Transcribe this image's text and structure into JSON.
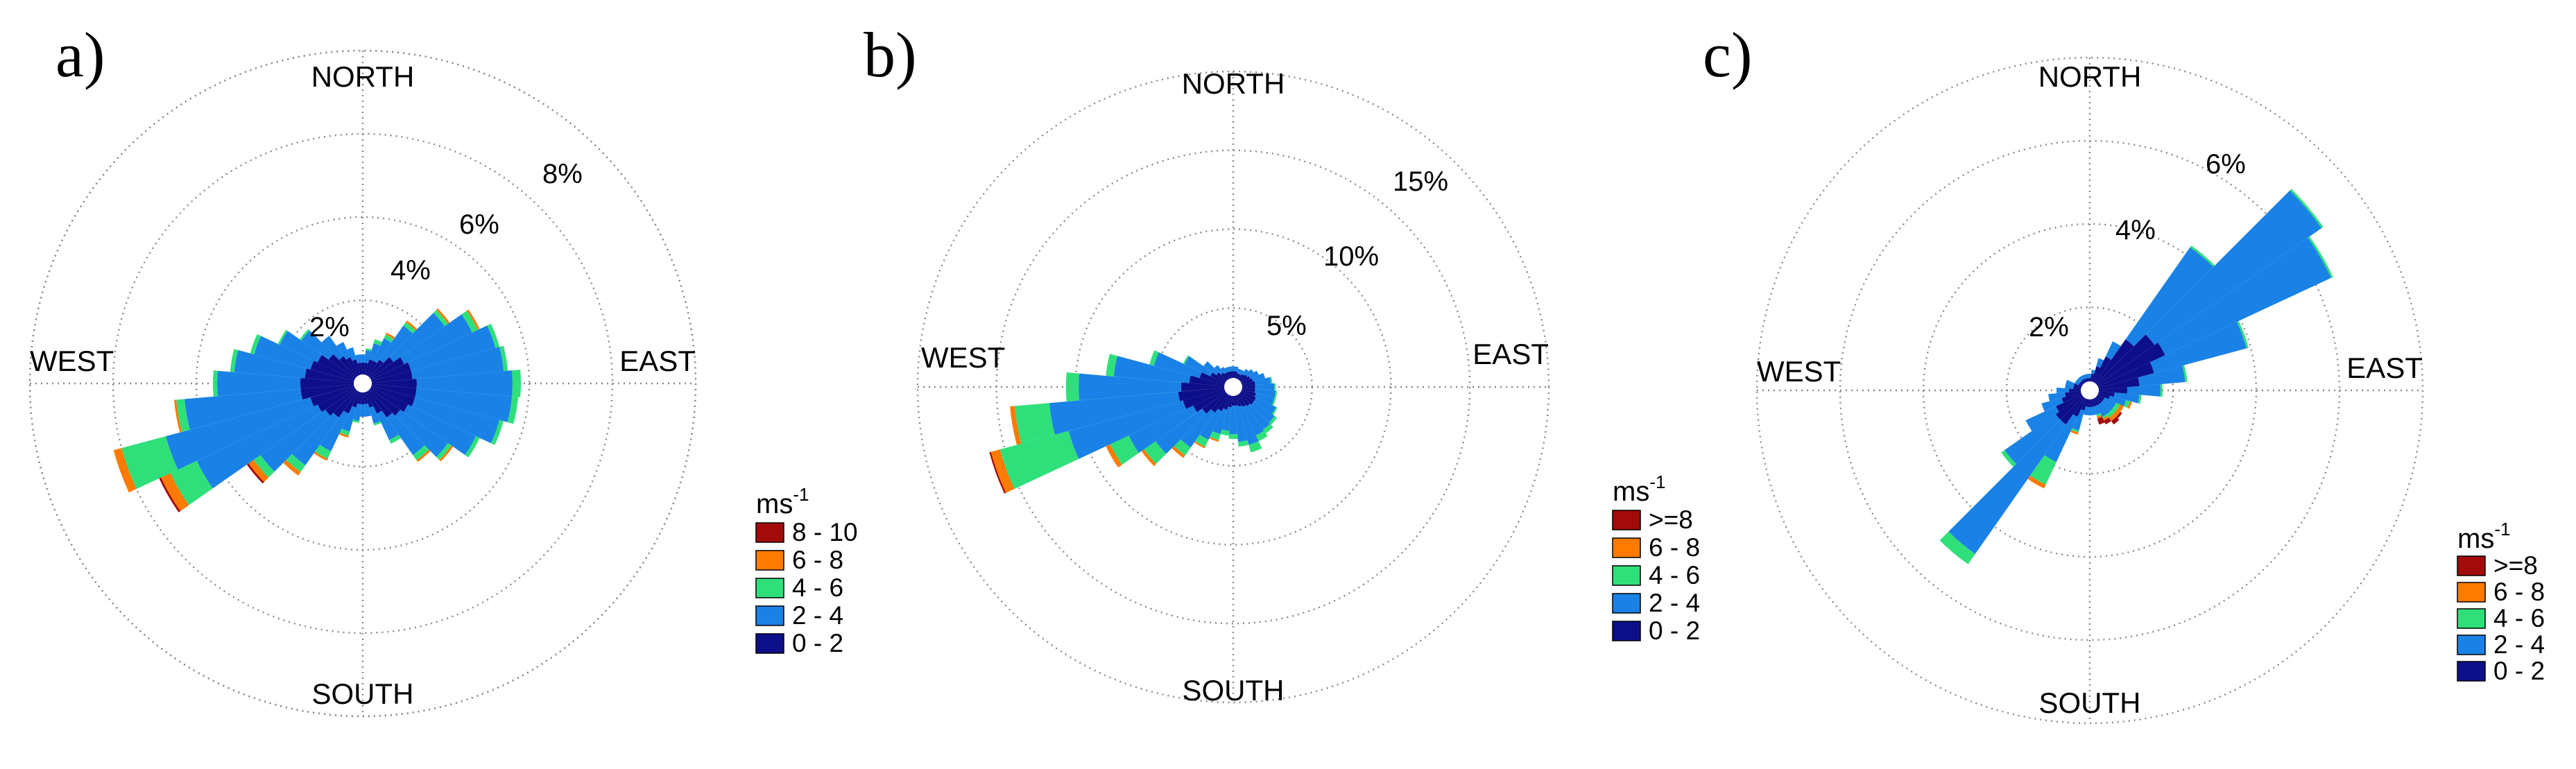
{
  "colors": {
    "bin_0_2": "#0d0f8a",
    "bin_2_4": "#1a82e6",
    "bin_4_6": "#2fe07a",
    "bin_6_8": "#ff7a00",
    "bin_8_plus": "#a30a0a"
  },
  "chart_data": [
    {
      "type": "windrose",
      "panel_label": "a)",
      "directions": {
        "north": "NORTH",
        "east": "EAST",
        "south": "SOUTH",
        "west": "WEST"
      },
      "rings": [
        2,
        4,
        6,
        8
      ],
      "ring_labels": [
        "2%",
        "4%",
        "6%",
        "8%"
      ],
      "rmax": 8,
      "legend_title": "ms",
      "legend_title_sup": "-1",
      "legend_labels": [
        "8 - 10",
        "6 - 8",
        "4 - 6",
        "2 - 4",
        "0 - 2"
      ],
      "bins": [
        "0 - 2",
        "2 - 4",
        "4 - 6",
        "6 - 8",
        "8 - 10"
      ],
      "directions_deg": [
        0,
        10,
        20,
        30,
        40,
        50,
        60,
        70,
        80,
        90,
        100,
        110,
        120,
        130,
        140,
        150,
        160,
        170,
        180,
        190,
        200,
        210,
        220,
        230,
        240,
        250,
        260,
        270,
        280,
        290,
        300,
        310,
        320,
        330,
        340,
        350
      ],
      "values": [
        [
          0.5,
          0.2,
          0,
          0,
          0
        ],
        [
          0.5,
          0.3,
          0.05,
          0,
          0
        ],
        [
          0.6,
          0.4,
          0.1,
          0,
          0
        ],
        [
          0.6,
          0.6,
          0.1,
          0.05,
          0
        ],
        [
          0.7,
          1.0,
          0.1,
          0.05,
          0
        ],
        [
          0.9,
          1.5,
          0.1,
          0.05,
          0
        ],
        [
          1.1,
          1.8,
          0.15,
          0.05,
          0
        ],
        [
          1.2,
          2.1,
          0.1,
          0,
          0
        ],
        [
          1.2,
          2.2,
          0.1,
          0,
          0
        ],
        [
          1.3,
          2.3,
          0.2,
          0,
          0
        ],
        [
          1.3,
          2.3,
          0.15,
          0,
          0
        ],
        [
          1.3,
          2.1,
          0.1,
          0,
          0
        ],
        [
          1.2,
          1.8,
          0.1,
          0,
          0
        ],
        [
          1.1,
          1.4,
          0.1,
          0.05,
          0
        ],
        [
          1.0,
          1.1,
          0.15,
          0.05,
          0
        ],
        [
          0.8,
          0.7,
          0.1,
          0,
          0
        ],
        [
          0.6,
          0.4,
          0.05,
          0,
          0
        ],
        [
          0.5,
          0.3,
          0,
          0,
          0
        ],
        [
          0.5,
          0.3,
          0,
          0,
          0
        ],
        [
          0.5,
          0.4,
          0.05,
          0,
          0
        ],
        [
          0.6,
          0.6,
          0.1,
          0.05,
          0
        ],
        [
          0.8,
          1.0,
          0.2,
          0.05,
          0
        ],
        [
          1.0,
          1.4,
          0.2,
          0.1,
          0
        ],
        [
          1.1,
          1.9,
          0.2,
          0.15,
          0.05
        ],
        [
          1.2,
          3.2,
          0.7,
          0.25,
          0.05
        ],
        [
          1.3,
          3.6,
          1.1,
          0.2,
          0
        ],
        [
          1.5,
          2.8,
          0.2,
          0.05,
          0
        ],
        [
          1.5,
          2.0,
          0.1,
          0,
          0
        ],
        [
          1.4,
          1.7,
          0.1,
          0,
          0
        ],
        [
          1.3,
          1.4,
          0.1,
          0,
          0
        ],
        [
          1.2,
          1.0,
          0.05,
          0,
          0
        ],
        [
          1.0,
          0.8,
          0.05,
          0,
          0
        ],
        [
          0.8,
          0.6,
          0,
          0,
          0
        ],
        [
          0.7,
          0.4,
          0,
          0,
          0
        ],
        [
          0.6,
          0.3,
          0,
          0,
          0
        ],
        [
          0.5,
          0.2,
          0,
          0,
          0
        ]
      ]
    },
    {
      "type": "windrose",
      "panel_label": "b)",
      "directions": {
        "north": "NORTH",
        "east": "EAST",
        "south": "SOUTH",
        "west": "WEST"
      },
      "rings": [
        5,
        10,
        15
      ],
      "ring_labels": [
        "5%",
        "10%",
        "15%"
      ],
      "rmax": 20,
      "legend_title": "ms",
      "legend_title_sup": "-1",
      "legend_labels": [
        ">=8",
        "6 - 8",
        "4 - 6",
        "2 - 4",
        "0 - 2"
      ],
      "bins": [
        "0 - 2",
        "2 - 4",
        "4 - 6",
        "6 - 8",
        ">=8"
      ],
      "directions_deg": [
        0,
        10,
        20,
        30,
        40,
        50,
        60,
        70,
        80,
        90,
        100,
        110,
        120,
        130,
        140,
        150,
        160,
        170,
        180,
        190,
        200,
        210,
        220,
        230,
        240,
        250,
        260,
        270,
        280,
        290,
        300,
        310,
        320,
        330,
        340,
        350
      ],
      "values": [
        [
          1.0,
          0.3,
          0,
          0,
          0
        ],
        [
          1.0,
          0.3,
          0,
          0,
          0
        ],
        [
          0.9,
          0.3,
          0,
          0,
          0
        ],
        [
          0.9,
          0.3,
          0,
          0,
          0
        ],
        [
          1.0,
          0.4,
          0,
          0,
          0
        ],
        [
          1.1,
          0.5,
          0,
          0,
          0
        ],
        [
          1.2,
          0.6,
          0,
          0,
          0
        ],
        [
          1.3,
          0.8,
          0,
          0,
          0
        ],
        [
          1.4,
          1.0,
          0.1,
          0,
          0
        ],
        [
          1.4,
          1.2,
          0.1,
          0,
          0
        ],
        [
          1.4,
          1.3,
          0.1,
          0,
          0
        ],
        [
          1.5,
          1.2,
          0.1,
          0,
          0
        ],
        [
          1.6,
          1.4,
          0.1,
          0,
          0
        ],
        [
          1.6,
          1.6,
          0.2,
          0,
          0
        ],
        [
          1.5,
          1.8,
          0.3,
          0,
          0
        ],
        [
          1.4,
          2.0,
          0.4,
          0,
          0
        ],
        [
          1.3,
          2.5,
          0.5,
          0,
          0
        ],
        [
          1.2,
          2.3,
          0.3,
          0,
          0
        ],
        [
          1.2,
          1.8,
          0.3,
          0,
          0
        ],
        [
          1.3,
          1.5,
          0.3,
          0,
          0
        ],
        [
          1.5,
          1.6,
          0.4,
          0.1,
          0
        ],
        [
          1.7,
          2.0,
          0.5,
          0.1,
          0
        ],
        [
          2.0,
          2.7,
          0.6,
          0.2,
          0
        ],
        [
          2.4,
          3.6,
          0.9,
          0.2,
          0
        ],
        [
          2.8,
          4.5,
          1.3,
          0.3,
          0
        ],
        [
          3.3,
          7.5,
          4.5,
          0.6,
          0.1
        ],
        [
          3.5,
          8.2,
          2.2,
          0.3,
          0
        ],
        [
          3.3,
          6.5,
          0.8,
          0,
          0
        ],
        [
          2.8,
          4.8,
          0.5,
          0,
          0
        ],
        [
          2.2,
          3.0,
          0.3,
          0,
          0
        ],
        [
          1.6,
          1.8,
          0.1,
          0,
          0
        ],
        [
          1.3,
          1.0,
          0,
          0,
          0
        ],
        [
          1.1,
          0.6,
          0,
          0,
          0
        ],
        [
          1.0,
          0.4,
          0,
          0,
          0
        ],
        [
          1.0,
          0.3,
          0,
          0,
          0
        ],
        [
          1.0,
          0.3,
          0,
          0,
          0
        ]
      ]
    },
    {
      "type": "windrose",
      "panel_label": "c)",
      "directions": {
        "north": "NORTH",
        "east": "EAST",
        "south": "SOUTH",
        "west": "WEST"
      },
      "rings": [
        2,
        4,
        6
      ],
      "ring_labels": [
        "2%",
        "4%",
        "6%"
      ],
      "rmax": 8,
      "legend_title": "ms",
      "legend_title_sup": "-1",
      "legend_labels": [
        ">=8",
        "6 - 8",
        "4 - 6",
        "2 - 4",
        "0 - 2"
      ],
      "bins": [
        "0 - 2",
        "2 - 4",
        "4 - 6",
        "6 - 8",
        ">=8"
      ],
      "directions_deg": [
        0,
        10,
        20,
        30,
        40,
        50,
        60,
        70,
        80,
        90,
        100,
        110,
        120,
        130,
        140,
        150,
        160,
        170,
        180,
        190,
        200,
        210,
        220,
        230,
        240,
        250,
        260,
        270,
        280,
        290,
        300,
        310,
        320,
        330,
        340,
        350
      ],
      "values": [
        [
          0.3,
          0.1,
          0,
          0,
          0
        ],
        [
          0.4,
          0.1,
          0,
          0,
          0
        ],
        [
          0.6,
          0.2,
          0,
          0,
          0
        ],
        [
          0.9,
          0.4,
          0,
          0,
          0
        ],
        [
          1.5,
          2.7,
          0.05,
          0,
          0
        ],
        [
          1.9,
          4.9,
          0.05,
          0,
          0
        ],
        [
          2.0,
          4.4,
          0.05,
          0,
          0
        ],
        [
          1.6,
          2.3,
          0.05,
          0,
          0
        ],
        [
          1.2,
          1.1,
          0.05,
          0,
          0
        ],
        [
          0.9,
          0.8,
          0.05,
          0,
          0
        ],
        [
          0.6,
          0.6,
          0.05,
          0,
          0
        ],
        [
          0.5,
          0.4,
          0.1,
          0.05,
          0
        ],
        [
          0.4,
          0.3,
          0.1,
          0.1,
          0
        ],
        [
          0.4,
          0.3,
          0.1,
          0.1,
          0.05
        ],
        [
          0.4,
          0.3,
          0.1,
          0.1,
          0.1
        ],
        [
          0.4,
          0.3,
          0.05,
          0.05,
          0.1
        ],
        [
          0.4,
          0.2,
          0.05,
          0.05,
          0.15
        ],
        [
          0.4,
          0.2,
          0,
          0,
          0
        ],
        [
          0.4,
          0.2,
          0,
          0,
          0
        ],
        [
          0.4,
          0.2,
          0,
          0,
          0
        ],
        [
          0.5,
          0.5,
          0.05,
          0.05,
          0
        ],
        [
          0.7,
          1.2,
          0.6,
          0.1,
          0
        ],
        [
          1.0,
          3.8,
          0.3,
          0,
          0
        ],
        [
          1.0,
          1.5,
          0.1,
          0,
          0
        ],
        [
          0.9,
          0.8,
          0,
          0,
          0
        ],
        [
          0.7,
          0.5,
          0,
          0,
          0
        ],
        [
          0.6,
          0.4,
          0,
          0,
          0
        ],
        [
          0.5,
          0.3,
          0,
          0,
          0
        ],
        [
          0.4,
          0.2,
          0,
          0,
          0
        ],
        [
          0.4,
          0.2,
          0,
          0,
          0
        ],
        [
          0.3,
          0.1,
          0,
          0,
          0
        ],
        [
          0.3,
          0.1,
          0,
          0,
          0
        ],
        [
          0.3,
          0.1,
          0,
          0,
          0
        ],
        [
          0.3,
          0.1,
          0,
          0,
          0
        ],
        [
          0.3,
          0.1,
          0,
          0,
          0
        ],
        [
          0.3,
          0.1,
          0,
          0,
          0
        ]
      ]
    }
  ]
}
